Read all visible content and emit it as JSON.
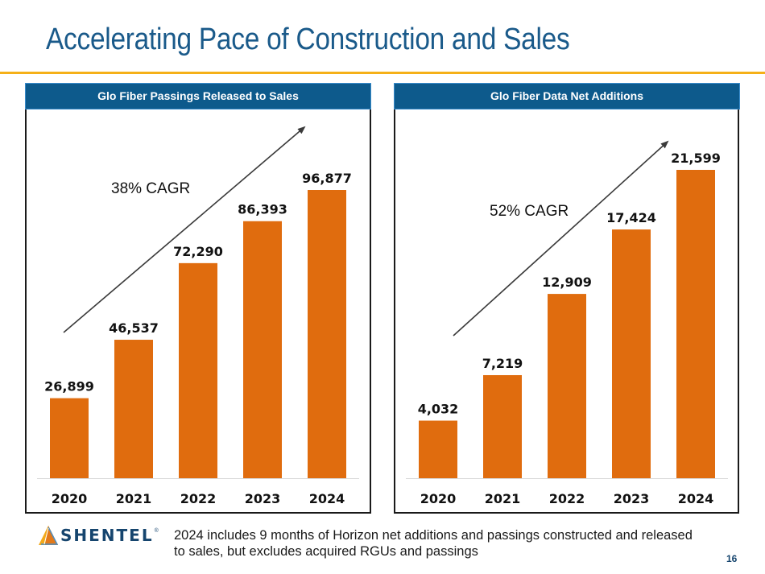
{
  "title": "Accelerating Pace of Construction and Sales",
  "colors": {
    "title": "#1a5a8a",
    "rule": "#f5b018",
    "header_bg": "#0d5a8c",
    "bar": "#e06c0e"
  },
  "chart_data": [
    {
      "type": "bar",
      "title": "Glo Fiber Passings Released to Sales",
      "categories": [
        "2020",
        "2021",
        "2022",
        "2023",
        "2024"
      ],
      "values": [
        26899,
        46537,
        72290,
        86393,
        96877
      ],
      "value_labels": [
        "26,899",
        "46,537",
        "72,290",
        "86,393",
        "96,877"
      ],
      "annotation": "38% CAGR",
      "xlabel": "",
      "ylabel": "",
      "ylim": [
        0,
        96877
      ],
      "grid": false
    },
    {
      "type": "bar",
      "title": "Glo Fiber Data Net Additions",
      "categories": [
        "2020",
        "2021",
        "2022",
        "2023",
        "2024"
      ],
      "values": [
        4032,
        7219,
        12909,
        17424,
        21599
      ],
      "value_labels": [
        "4,032",
        "7,219",
        "12,909",
        "17,424",
        "21,599"
      ],
      "annotation": "52% CAGR",
      "xlabel": "",
      "ylabel": "",
      "ylim": [
        0,
        21599
      ],
      "grid": false
    }
  ],
  "footer": {
    "logo_text": "SHENTEL",
    "logo_reg": "®",
    "note": "2024 includes 9 months of Horizon net additions and passings constructed and released to sales, but excludes acquired RGUs and passings",
    "page_number": "16"
  }
}
